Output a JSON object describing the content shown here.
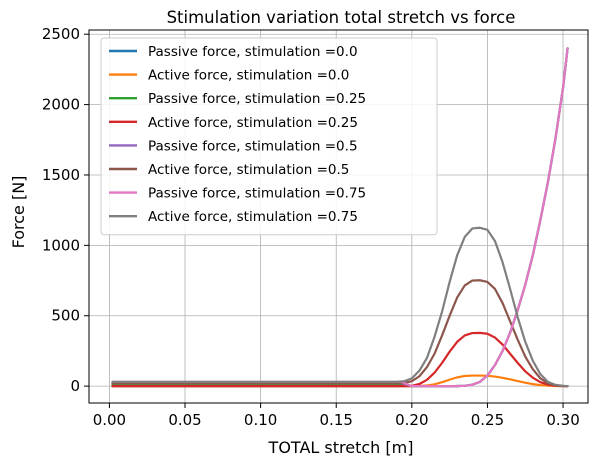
{
  "chart_data": {
    "type": "line",
    "title": "Stimulation variation total stretch vs force",
    "xlabel": "TOTAL stretch [m]",
    "ylabel": "Force [N]",
    "xlim": [
      -0.0135,
      0.3165
    ],
    "ylim": [
      -120,
      2530
    ],
    "xticks": [
      0.0,
      0.05,
      0.1,
      0.15,
      0.2,
      0.25,
      0.3
    ],
    "xtick_labels": [
      "0.00",
      "0.05",
      "0.10",
      "0.15",
      "0.20",
      "0.25",
      "0.30"
    ],
    "yticks": [
      0,
      500,
      1000,
      1500,
      2000,
      2500
    ],
    "ytick_labels": [
      "0",
      "500",
      "1000",
      "1500",
      "2000",
      "2500"
    ],
    "grid": true,
    "legend_position": "upper-left",
    "series": [
      {
        "name": "Passive force, stimulation =0.0",
        "color": "#1f77b4",
        "x": [
          0.002,
          0.05,
          0.1,
          0.15,
          0.2,
          0.228,
          0.235,
          0.24,
          0.245,
          0.25,
          0.255,
          0.26,
          0.265,
          0.27,
          0.275,
          0.28,
          0.285,
          0.29,
          0.295,
          0.3,
          0.303
        ],
        "y": [
          0,
          0,
          0,
          0,
          0,
          0,
          2,
          10,
          30,
          75,
          150,
          250,
          380,
          540,
          720,
          930,
          1180,
          1450,
          1760,
          2120,
          2400
        ]
      },
      {
        "name": "Active force, stimulation =0.0",
        "color": "#ff7f0e",
        "x": [
          0.002,
          0.05,
          0.1,
          0.15,
          0.195,
          0.2,
          0.205,
          0.21,
          0.215,
          0.22,
          0.225,
          0.23,
          0.235,
          0.24,
          0.245,
          0.25,
          0.255,
          0.26,
          0.265,
          0.27,
          0.275,
          0.28,
          0.285,
          0.29,
          0.295,
          0.3,
          0.303
        ],
        "y": [
          0,
          0,
          0,
          0,
          0,
          0,
          1,
          5,
          13,
          28,
          46,
          62,
          72,
          75,
          75,
          73,
          68,
          59,
          48,
          36,
          24,
          14,
          7,
          3,
          1,
          0,
          0
        ]
      },
      {
        "name": "Passive force, stimulation =0.25",
        "color": "#2ca02c",
        "x": [
          0.002,
          0.05,
          0.1,
          0.15,
          0.193,
          0.2,
          0.228,
          0.235,
          0.24,
          0.245,
          0.25,
          0.255,
          0.26,
          0.265,
          0.27,
          0.275,
          0.28,
          0.285,
          0.29,
          0.295,
          0.3,
          0.303
        ],
        "y": [
          10,
          10,
          10,
          10,
          10,
          0,
          0,
          2,
          10,
          30,
          75,
          150,
          250,
          380,
          540,
          720,
          930,
          1180,
          1450,
          1760,
          2120,
          2400
        ]
      },
      {
        "name": "Active force, stimulation =0.25",
        "color": "#d62728",
        "x": [
          0.002,
          0.05,
          0.1,
          0.15,
          0.19,
          0.195,
          0.2,
          0.205,
          0.21,
          0.215,
          0.22,
          0.225,
          0.23,
          0.235,
          0.24,
          0.245,
          0.25,
          0.255,
          0.26,
          0.265,
          0.27,
          0.275,
          0.28,
          0.285,
          0.29,
          0.295,
          0.3,
          0.303
        ],
        "y": [
          0,
          0,
          0,
          0,
          0,
          0,
          2,
          15,
          45,
          95,
          165,
          245,
          315,
          360,
          377,
          378,
          372,
          345,
          295,
          230,
          165,
          105,
          60,
          28,
          10,
          3,
          0,
          0
        ]
      },
      {
        "name": "Passive force, stimulation =0.5",
        "color": "#9467bd",
        "x": [
          0.002,
          0.05,
          0.1,
          0.15,
          0.193,
          0.2,
          0.228,
          0.235,
          0.24,
          0.245,
          0.25,
          0.255,
          0.26,
          0.265,
          0.27,
          0.275,
          0.28,
          0.285,
          0.29,
          0.295,
          0.3,
          0.303
        ],
        "y": [
          20,
          20,
          20,
          20,
          20,
          0,
          0,
          2,
          10,
          30,
          75,
          150,
          250,
          380,
          540,
          720,
          930,
          1180,
          1450,
          1760,
          2120,
          2400
        ]
      },
      {
        "name": "Active force, stimulation =0.5",
        "color": "#8c564b",
        "x": [
          0.002,
          0.05,
          0.1,
          0.15,
          0.19,
          0.195,
          0.2,
          0.205,
          0.21,
          0.215,
          0.22,
          0.225,
          0.23,
          0.235,
          0.24,
          0.245,
          0.25,
          0.255,
          0.26,
          0.265,
          0.27,
          0.275,
          0.28,
          0.285,
          0.29,
          0.295,
          0.3,
          0.303
        ],
        "y": [
          20,
          20,
          20,
          20,
          20,
          22,
          35,
          70,
          135,
          230,
          360,
          500,
          630,
          715,
          750,
          752,
          740,
          690,
          590,
          460,
          330,
          210,
          120,
          55,
          20,
          6,
          1,
          0
        ]
      },
      {
        "name": "Passive force, stimulation =0.75",
        "color": "#e377c2",
        "x": [
          0.002,
          0.05,
          0.1,
          0.15,
          0.193,
          0.2,
          0.228,
          0.235,
          0.24,
          0.245,
          0.25,
          0.255,
          0.26,
          0.265,
          0.27,
          0.275,
          0.28,
          0.285,
          0.29,
          0.295,
          0.3,
          0.303
        ],
        "y": [
          30,
          30,
          30,
          30,
          30,
          0,
          0,
          2,
          10,
          30,
          75,
          150,
          250,
          380,
          540,
          720,
          930,
          1180,
          1450,
          1760,
          2120,
          2400
        ]
      },
      {
        "name": "Active force, stimulation =0.75",
        "color": "#7f7f7f",
        "x": [
          0.002,
          0.05,
          0.1,
          0.15,
          0.19,
          0.195,
          0.2,
          0.205,
          0.21,
          0.215,
          0.22,
          0.225,
          0.23,
          0.235,
          0.24,
          0.245,
          0.25,
          0.255,
          0.26,
          0.265,
          0.27,
          0.275,
          0.28,
          0.285,
          0.29,
          0.295,
          0.3,
          0.303
        ],
        "y": [
          30,
          30,
          30,
          30,
          30,
          35,
          55,
          110,
          200,
          350,
          530,
          740,
          930,
          1060,
          1120,
          1125,
          1110,
          1030,
          880,
          690,
          490,
          315,
          180,
          85,
          30,
          9,
          2,
          0
        ]
      }
    ]
  }
}
